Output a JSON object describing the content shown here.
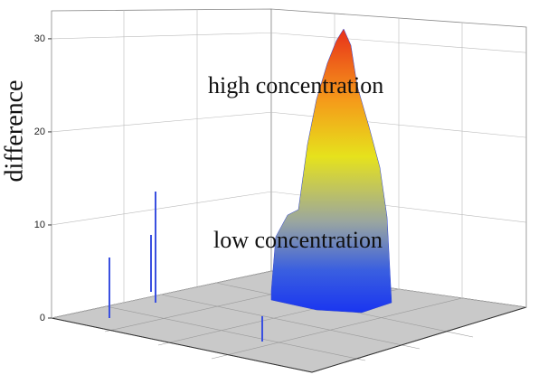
{
  "chart_data": {
    "type": "surface3d",
    "zlabel": "difference",
    "zlim": [
      0,
      33
    ],
    "zticks": [
      0,
      10,
      20,
      30
    ],
    "grid": true,
    "annotations": [
      "high concentration",
      "low concentration"
    ]
  }
}
